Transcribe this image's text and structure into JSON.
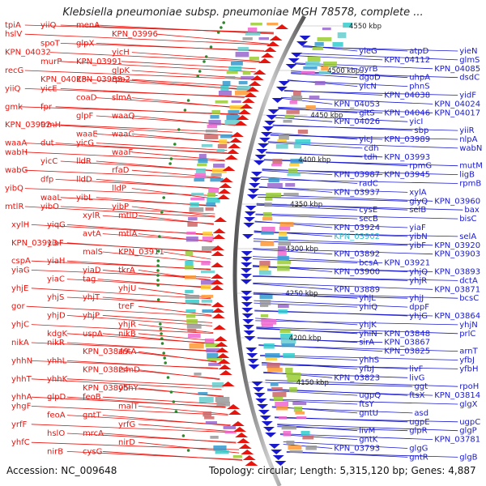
{
  "title": "Klebsiella pneumoniae subsp. pneumoniae MGH 78578, complete ...",
  "accession": "Accession: NC_009648",
  "summary": "Topology: circular; Length: 5,315,120 bp; Genes: 4,887",
  "colors": {
    "forward": "#e8140e",
    "reverse": "#1a1acc",
    "highlight": "#33bbcc",
    "backbone": "#888888"
  },
  "kbp_markers": [
    "4550 kbp",
    "4500 kbp",
    "4450 kbp",
    "4400 kbp",
    "4350 kbp",
    "4300 kbp",
    "4250 kbp",
    "4200 kbp",
    "4150 kbp"
  ],
  "left_labels": [
    "tpiA",
    "yiiQ",
    "menA",
    "KPN_03996",
    "hslV",
    "spoT",
    "glpX",
    "yicH",
    "KPN_04032",
    "murP",
    "KPN_03991",
    "glpK",
    "recG",
    "KPN_04028",
    "KPN_03988",
    "rpo2",
    "yiiQ",
    "yicE",
    "coaD",
    "slmA",
    "gmk",
    "fpr",
    "glpF",
    "waaQ",
    "KPN_03992",
    "trmH",
    "waaE",
    "waaC",
    "waaA",
    "dut",
    "yicG",
    "waaF",
    "wabH",
    "yicC",
    "lldR",
    "rfaD",
    "wabG",
    "dfp",
    "lldD",
    "lldP",
    "yibQ",
    "waaL",
    "yibL",
    "yibP",
    "mtlR",
    "yibO",
    "xylR",
    "mtlD",
    "xylH",
    "yiqG",
    "avtA",
    "mtlA",
    "KPN_03913",
    "yiaF",
    "malS",
    "KPN_03911",
    "cspA",
    "yiaH",
    "yiaD",
    "tkrA",
    "yiaG",
    "yiaC",
    "tag",
    "yhjU",
    "yhjE",
    "yhjS",
    "yhjT",
    "treF",
    "gor",
    "yhjD",
    "yhjP",
    "yhjR",
    "yhjC",
    "kdgK",
    "uspA",
    "nikB",
    "nikA",
    "nikR",
    "KPN_03849",
    "zntA",
    "yhhN",
    "yhhL",
    "KPN_03824",
    "rsmD",
    "yhhT",
    "yhhK",
    "KPN_03805",
    "yhhY",
    "yhhA",
    "glpD",
    "feoB",
    "malT",
    "yhgF",
    "feoA",
    "gntT",
    "yrfG",
    "yrfF",
    "hslO",
    "mrcA",
    "nirD",
    "yhfC",
    "nirB",
    "cysG"
  ],
  "right_labels": [
    "yieN",
    "atpD",
    "yieG",
    "glmS",
    "KPN_04112",
    "gyrB",
    "KPN_04085",
    "uhpA",
    "dgoD",
    "dsdC",
    "phnS",
    "yicN",
    "yidF",
    "KPN_04038",
    "KPN_04053",
    "KPN_04024",
    "KPN_04046",
    "gltS",
    "KPN_04017",
    "yicI",
    "KPN_04026",
    "yiiR",
    "sbp",
    "yicJ",
    "nlpA",
    "KPN_03989",
    "cdh",
    "wabN",
    "KPN_03993",
    "tdh",
    "mutM",
    "rpmG",
    "KPN_03987",
    "ligB",
    "KPN_03945",
    "radC",
    "rpmB",
    "xylA",
    "KPN_03937",
    "KPN_03960",
    "glyQ",
    "cysE",
    "bax",
    "selB",
    "secB",
    "bisC",
    "yiaF",
    "KPN_03924",
    "selA",
    "yibN",
    "KPN_03902",
    "KPN_03920",
    "yibF",
    "KPN_03892",
    "KPN_03903",
    "KPN_03921",
    "bcsA",
    "KPN_03893",
    "yhjQ",
    "KPN_03900",
    "dctA",
    "yhjR",
    "KPN_03889",
    "KPN_03871",
    "yhjJ",
    "yhjL",
    "bcsC",
    "dppF",
    "yhiQ",
    "KPN_03864",
    "yhjG",
    "yhjK",
    "yhjN",
    "KPN_03848",
    "yhiN",
    "prlC",
    "KPN_03867",
    "sirA",
    "arnT",
    "KPN_03825",
    "yhhS",
    "yfbJ",
    "livF",
    "yfbJ",
    "yfbH",
    "livG",
    "KPN_03823",
    "rpoH",
    "ggt",
    "ugpQ",
    "KPN_03814",
    "ftsX",
    "ftsY",
    "glgX",
    "asd",
    "gntU",
    "ugpC",
    "ugpE",
    "livM",
    "glgP",
    "glpR",
    "gntK",
    "KPN_03781",
    "glgG",
    "KPN_03793",
    "glgB",
    "gntR"
  ],
  "highlight_label": "KPN_03902"
}
